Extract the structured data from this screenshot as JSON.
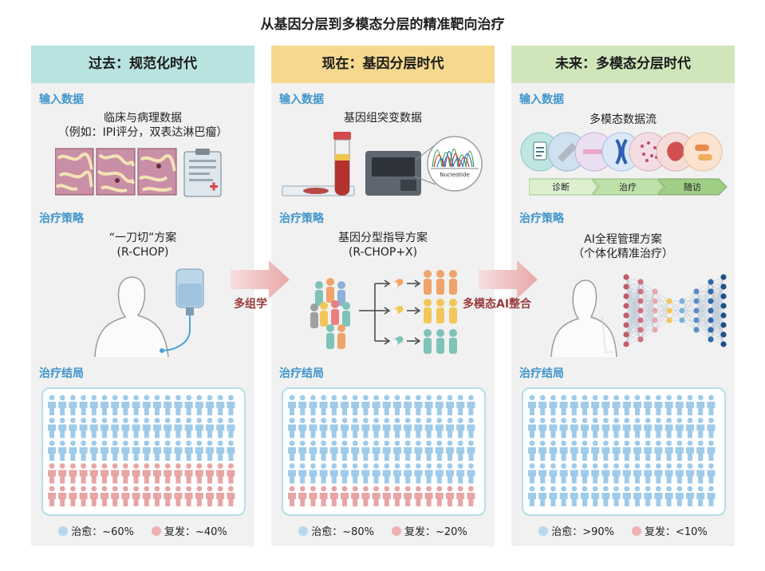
{
  "title": "从基因分层到多模态分层的精准靶向治疗",
  "colors": {
    "cure": "#9fcbea",
    "relapse": "#e8a5a5",
    "accent": "#3f95c9"
  },
  "arrows": [
    {
      "label": "多组学"
    },
    {
      "label": "多模态AI整合"
    }
  ],
  "columns": [
    {
      "header": "过去：规范化时代",
      "input_label": "输入数据",
      "input_text": [
        "临床与病理数据",
        "（例如：IPI评分，双表达淋巴瘤）"
      ],
      "strategy_label": "治疗策略",
      "strategy_text": [
        "“一刀切”方案",
        "(R-CHOP)"
      ],
      "outcome_label": "治疗结局",
      "cure_rows": 3,
      "relapse_rows": 2,
      "legend_cure": "治愈：~60%",
      "legend_relapse": "复发：~40%"
    },
    {
      "header": "现在：基因分层时代",
      "input_label": "输入数据",
      "input_text": [
        "基因组突变数据"
      ],
      "nucleotide_label": "Nucleotide",
      "strategy_label": "治疗策略",
      "strategy_text": [
        "基因分型指导方案",
        "(R-CHOP+X)"
      ],
      "outcome_label": "治疗结局",
      "cure_rows": 4,
      "relapse_rows": 1,
      "legend_cure": "治愈：~80%",
      "legend_relapse": "复发：~20%"
    },
    {
      "header": "未来：多模态分层时代",
      "input_label": "输入数据",
      "input_text": [
        "多模态数据流"
      ],
      "timeline": [
        "诊断",
        "治疗",
        "随访"
      ],
      "strategy_label": "治疗策略",
      "strategy_text": [
        "AI全程管理方案",
        "（个体化精准治疗）"
      ],
      "outcome_label": "治疗结局",
      "cure_rows": 5,
      "relapse_rows": 0,
      "legend_cure": "治愈：>90%",
      "legend_relapse": "复发：<10%"
    }
  ]
}
